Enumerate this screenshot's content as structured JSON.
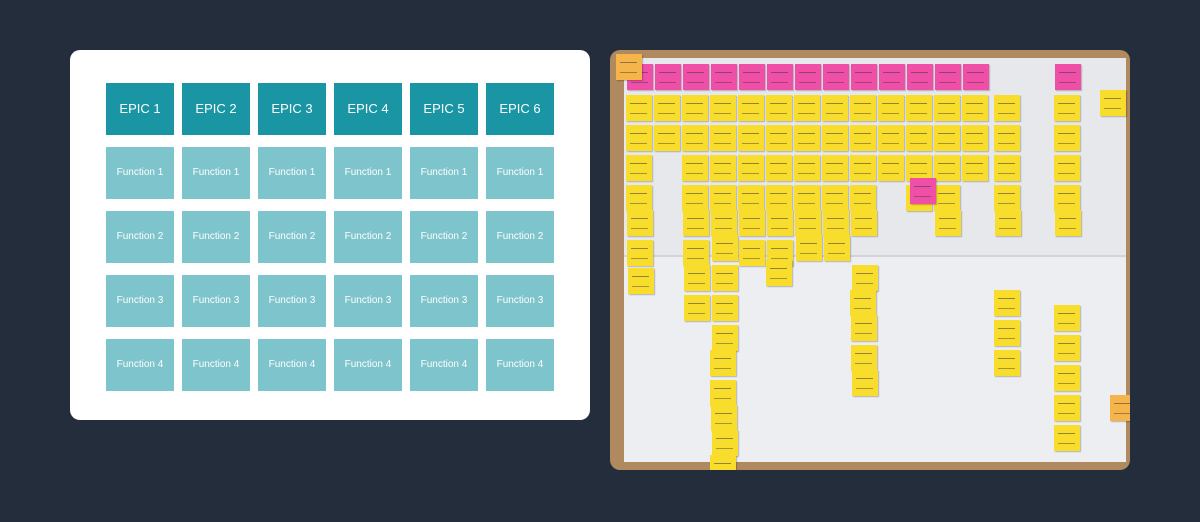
{
  "diagram": {
    "epics": [
      "EPIC 1",
      "EPIC 2",
      "EPIC 3",
      "EPIC 4",
      "EPIC 5",
      "EPIC 6"
    ],
    "function_rows": [
      "Function 1",
      "Function 2",
      "Function 3",
      "Function 4"
    ]
  },
  "colors": {
    "background": "#232d3b",
    "epic": "#1995a3",
    "function": "#7ec4cc",
    "sticky_yellow": "#f9dd2c",
    "sticky_pink": "#f04fa8"
  },
  "photo": {
    "description_label": "Story map wall of sticky notes"
  }
}
